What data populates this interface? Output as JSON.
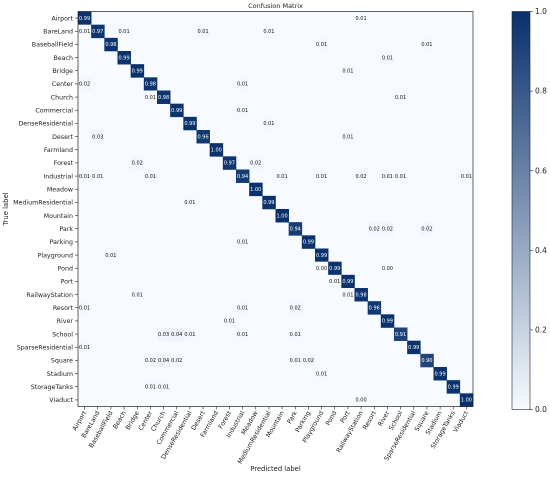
{
  "chart_data": {
    "type": "heatmap",
    "title": "Confusion Matrix",
    "xlabel": "Predicted label",
    "ylabel": "True label",
    "labels": [
      "Airport",
      "BareLand",
      "BaseballField",
      "Beach",
      "Bridge",
      "Center",
      "Church",
      "Commercial",
      "DenseResidential",
      "Desert",
      "Farmland",
      "Forest",
      "Industrial",
      "Meadow",
      "MediumResidential",
      "Mountain",
      "Park",
      "Parking",
      "Playground",
      "Pond",
      "Port",
      "RailwayStation",
      "Resort",
      "River",
      "School",
      "SparseResidential",
      "Square",
      "Stadium",
      "StorageTanks",
      "Viaduct"
    ],
    "cells": [
      {
        "row": 0,
        "col": 0,
        "value": 0.99
      },
      {
        "row": 0,
        "col": 21,
        "value": 0.01
      },
      {
        "row": 1,
        "col": 0,
        "value": 0.01
      },
      {
        "row": 1,
        "col": 1,
        "value": 0.97
      },
      {
        "row": 1,
        "col": 3,
        "value": 0.01
      },
      {
        "row": 1,
        "col": 9,
        "value": 0.01
      },
      {
        "row": 1,
        "col": 14,
        "value": 0.01
      },
      {
        "row": 2,
        "col": 2,
        "value": 0.98
      },
      {
        "row": 2,
        "col": 18,
        "value": 0.01
      },
      {
        "row": 2,
        "col": 26,
        "value": 0.01
      },
      {
        "row": 3,
        "col": 3,
        "value": 0.99
      },
      {
        "row": 3,
        "col": 23,
        "value": 0.01
      },
      {
        "row": 4,
        "col": 4,
        "value": 0.99
      },
      {
        "row": 4,
        "col": 20,
        "value": 0.01
      },
      {
        "row": 5,
        "col": 0,
        "value": 0.02
      },
      {
        "row": 5,
        "col": 5,
        "value": 0.98
      },
      {
        "row": 5,
        "col": 12,
        "value": 0.01
      },
      {
        "row": 6,
        "col": 5,
        "value": 0.01
      },
      {
        "row": 6,
        "col": 6,
        "value": 0.98
      },
      {
        "row": 6,
        "col": 24,
        "value": 0.01
      },
      {
        "row": 7,
        "col": 7,
        "value": 0.99
      },
      {
        "row": 7,
        "col": 12,
        "value": 0.01
      },
      {
        "row": 8,
        "col": 8,
        "value": 0.99
      },
      {
        "row": 8,
        "col": 14,
        "value": 0.01
      },
      {
        "row": 9,
        "col": 1,
        "value": 0.03
      },
      {
        "row": 9,
        "col": 9,
        "value": 0.96
      },
      {
        "row": 9,
        "col": 20,
        "value": 0.01
      },
      {
        "row": 10,
        "col": 10,
        "value": 1.0
      },
      {
        "row": 11,
        "col": 4,
        "value": 0.02
      },
      {
        "row": 11,
        "col": 11,
        "value": 0.97
      },
      {
        "row": 11,
        "col": 13,
        "value": 0.02
      },
      {
        "row": 12,
        "col": 0,
        "value": 0.01
      },
      {
        "row": 12,
        "col": 1,
        "value": 0.01
      },
      {
        "row": 12,
        "col": 5,
        "value": 0.01
      },
      {
        "row": 12,
        "col": 12,
        "value": 0.94
      },
      {
        "row": 12,
        "col": 15,
        "value": 0.01
      },
      {
        "row": 12,
        "col": 18,
        "value": 0.01
      },
      {
        "row": 12,
        "col": 21,
        "value": 0.02
      },
      {
        "row": 12,
        "col": 23,
        "value": 0.01
      },
      {
        "row": 12,
        "col": 24,
        "value": 0.01
      },
      {
        "row": 12,
        "col": 29,
        "value": 0.01
      },
      {
        "row": 13,
        "col": 13,
        "value": 1.0
      },
      {
        "row": 14,
        "col": 8,
        "value": 0.01
      },
      {
        "row": 14,
        "col": 14,
        "value": 0.99
      },
      {
        "row": 15,
        "col": 15,
        "value": 1.0
      },
      {
        "row": 16,
        "col": 16,
        "value": 0.94
      },
      {
        "row": 16,
        "col": 22,
        "value": 0.02
      },
      {
        "row": 16,
        "col": 23,
        "value": 0.02
      },
      {
        "row": 16,
        "col": 26,
        "value": 0.02
      },
      {
        "row": 17,
        "col": 12,
        "value": 0.01
      },
      {
        "row": 17,
        "col": 17,
        "value": 0.99
      },
      {
        "row": 18,
        "col": 2,
        "value": 0.01
      },
      {
        "row": 18,
        "col": 18,
        "value": 0.99
      },
      {
        "row": 19,
        "col": 18,
        "value": 0.0
      },
      {
        "row": 19,
        "col": 19,
        "value": 0.99
      },
      {
        "row": 19,
        "col": 23,
        "value": 0.0
      },
      {
        "row": 20,
        "col": 19,
        "value": 0.01
      },
      {
        "row": 20,
        "col": 20,
        "value": 0.99
      },
      {
        "row": 21,
        "col": 4,
        "value": 0.01
      },
      {
        "row": 21,
        "col": 20,
        "value": 0.01
      },
      {
        "row": 21,
        "col": 21,
        "value": 0.98
      },
      {
        "row": 22,
        "col": 0,
        "value": 0.01
      },
      {
        "row": 22,
        "col": 12,
        "value": 0.01
      },
      {
        "row": 22,
        "col": 16,
        "value": 0.02
      },
      {
        "row": 22,
        "col": 22,
        "value": 0.96
      },
      {
        "row": 23,
        "col": 11,
        "value": 0.01
      },
      {
        "row": 23,
        "col": 23,
        "value": 0.99
      },
      {
        "row": 24,
        "col": 6,
        "value": 0.03
      },
      {
        "row": 24,
        "col": 7,
        "value": 0.04
      },
      {
        "row": 24,
        "col": 8,
        "value": 0.01
      },
      {
        "row": 24,
        "col": 12,
        "value": 0.01
      },
      {
        "row": 24,
        "col": 16,
        "value": 0.01
      },
      {
        "row": 24,
        "col": 24,
        "value": 0.91
      },
      {
        "row": 25,
        "col": 0,
        "value": 0.01
      },
      {
        "row": 25,
        "col": 25,
        "value": 0.99
      },
      {
        "row": 26,
        "col": 5,
        "value": 0.02
      },
      {
        "row": 26,
        "col": 6,
        "value": 0.04
      },
      {
        "row": 26,
        "col": 7,
        "value": 0.02
      },
      {
        "row": 26,
        "col": 16,
        "value": 0.01
      },
      {
        "row": 26,
        "col": 17,
        "value": 0.02
      },
      {
        "row": 26,
        "col": 26,
        "value": 0.9
      },
      {
        "row": 27,
        "col": 18,
        "value": 0.01
      },
      {
        "row": 27,
        "col": 27,
        "value": 0.99
      },
      {
        "row": 28,
        "col": 5,
        "value": 0.01
      },
      {
        "row": 28,
        "col": 6,
        "value": 0.01
      },
      {
        "row": 28,
        "col": 28,
        "value": 0.99
      },
      {
        "row": 29,
        "col": 21,
        "value": 0.0
      },
      {
        "row": 29,
        "col": 29,
        "value": 1.0
      }
    ],
    "range": [
      0,
      1
    ],
    "colorbar": {
      "ticks": [
        "0.0",
        "0.2",
        "0.4",
        "0.6",
        "0.8",
        "1.0"
      ],
      "low_color": "#f7fbff",
      "high_color": "#08306b"
    },
    "grid": false
  }
}
